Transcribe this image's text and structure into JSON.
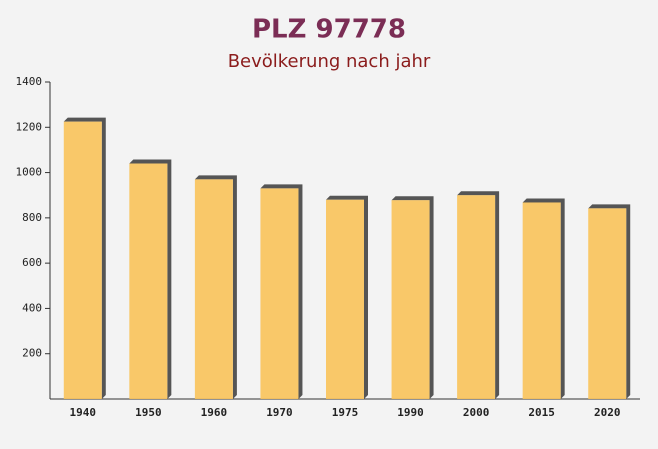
{
  "chart_data": {
    "type": "bar",
    "title": "PLZ 97778",
    "subtitle": "Bevölkerung nach jahr",
    "categories": [
      "1940",
      "1950",
      "1960",
      "1970",
      "1975",
      "1990",
      "2000",
      "2015",
      "2020"
    ],
    "values": [
      1225,
      1040,
      970,
      930,
      880,
      878,
      900,
      868,
      842
    ],
    "color": "#f9c35a",
    "ylim": [
      0,
      1400
    ],
    "yticks": [
      200,
      400,
      600,
      800,
      1000,
      1200,
      1400
    ]
  }
}
